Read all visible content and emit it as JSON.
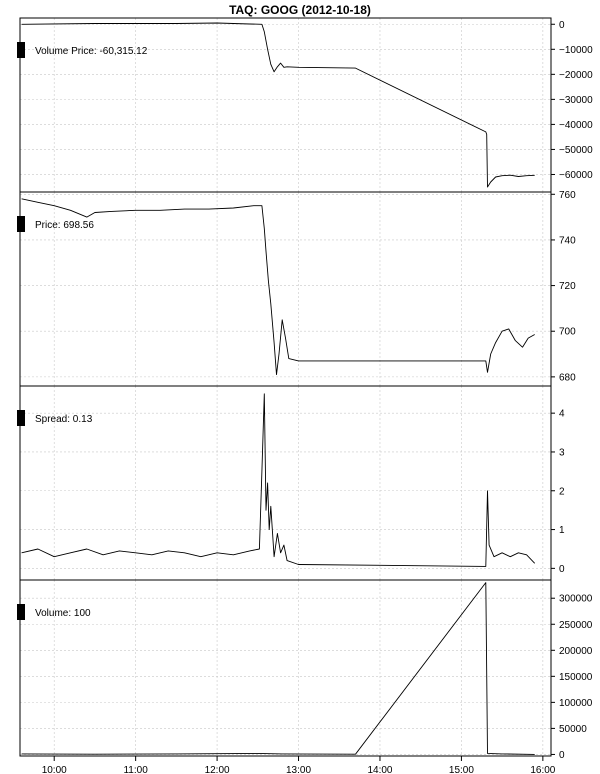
{
  "chart_data": {
    "type": "line",
    "title": "TAQ: GOOG (2012-10-18)",
    "x_axis": {
      "ticks": [
        "10:00",
        "11:00",
        "12:00",
        "13:00",
        "14:00",
        "15:00",
        "16:00"
      ],
      "range_hours": [
        9.58,
        16.1
      ]
    },
    "panels": [
      {
        "legend": "Volume Price: -60,315.12",
        "ylim": [
          -67000,
          2500
        ],
        "yticks": [
          0,
          -10000,
          -20000,
          -30000,
          -40000,
          -50000,
          -60000
        ],
        "ytick_labels": [
          "0",
          "−10000",
          "−20000",
          "−30000",
          "−40000",
          "−50000",
          "−60000"
        ],
        "points": [
          [
            9.6,
            0
          ],
          [
            10.5,
            300
          ],
          [
            11.5,
            300
          ],
          [
            12.0,
            500
          ],
          [
            12.4,
            100
          ],
          [
            12.55,
            0
          ],
          [
            12.58,
            -3000
          ],
          [
            12.62,
            -10000
          ],
          [
            12.66,
            -16000
          ],
          [
            12.7,
            -19000
          ],
          [
            12.74,
            -17000
          ],
          [
            12.78,
            -15500
          ],
          [
            12.82,
            -17200
          ],
          [
            12.86,
            -17000
          ],
          [
            13.0,
            -17200
          ],
          [
            13.7,
            -17500
          ],
          [
            15.3,
            -43000
          ],
          [
            15.31,
            -44000
          ],
          [
            15.32,
            -65000
          ],
          [
            15.36,
            -63000
          ],
          [
            15.42,
            -61000
          ],
          [
            15.5,
            -60500
          ],
          [
            15.6,
            -60300
          ],
          [
            15.7,
            -60800
          ],
          [
            15.8,
            -60500
          ],
          [
            15.9,
            -60315
          ]
        ]
      },
      {
        "legend": "Price: 698.56",
        "ylim": [
          676,
          761
        ],
        "yticks": [
          680,
          700,
          720,
          740,
          760
        ],
        "ytick_labels": [
          "680",
          "700",
          "720",
          "740",
          "760"
        ],
        "points": [
          [
            9.6,
            758
          ],
          [
            9.8,
            756.5
          ],
          [
            10.0,
            755
          ],
          [
            10.2,
            753
          ],
          [
            10.4,
            750
          ],
          [
            10.5,
            752
          ],
          [
            10.7,
            752.5
          ],
          [
            11.0,
            753
          ],
          [
            11.3,
            753
          ],
          [
            11.6,
            753.5
          ],
          [
            11.9,
            753.5
          ],
          [
            12.2,
            754
          ],
          [
            12.45,
            755
          ],
          [
            12.55,
            755
          ],
          [
            12.58,
            745
          ],
          [
            12.6,
            735
          ],
          [
            12.63,
            722
          ],
          [
            12.66,
            712
          ],
          [
            12.7,
            695
          ],
          [
            12.73,
            681
          ],
          [
            12.76,
            690
          ],
          [
            12.8,
            705
          ],
          [
            12.84,
            697
          ],
          [
            12.88,
            688
          ],
          [
            13.0,
            687
          ],
          [
            15.3,
            687
          ],
          [
            15.32,
            682
          ],
          [
            15.36,
            690
          ],
          [
            15.42,
            695
          ],
          [
            15.5,
            700
          ],
          [
            15.58,
            701
          ],
          [
            15.66,
            696
          ],
          [
            15.75,
            693
          ],
          [
            15.82,
            697
          ],
          [
            15.9,
            698.56
          ]
        ]
      },
      {
        "legend": "Spread: 0.13",
        "ylim": [
          -0.3,
          4.7
        ],
        "yticks": [
          0,
          1,
          2,
          3,
          4
        ],
        "ytick_labels": [
          "0",
          "1",
          "2",
          "3",
          "4"
        ],
        "points": [
          [
            9.6,
            0.4
          ],
          [
            9.8,
            0.5
          ],
          [
            10.0,
            0.3
          ],
          [
            10.2,
            0.4
          ],
          [
            10.4,
            0.5
          ],
          [
            10.6,
            0.35
          ],
          [
            10.8,
            0.45
          ],
          [
            11.0,
            0.4
          ],
          [
            11.2,
            0.35
          ],
          [
            11.4,
            0.45
          ],
          [
            11.6,
            0.4
          ],
          [
            11.8,
            0.3
          ],
          [
            12.0,
            0.4
          ],
          [
            12.2,
            0.35
          ],
          [
            12.4,
            0.45
          ],
          [
            12.52,
            0.5
          ],
          [
            12.55,
            2.5
          ],
          [
            12.58,
            4.5
          ],
          [
            12.6,
            1.5
          ],
          [
            12.62,
            2.2
          ],
          [
            12.64,
            1.0
          ],
          [
            12.66,
            1.6
          ],
          [
            12.7,
            0.3
          ],
          [
            12.74,
            0.9
          ],
          [
            12.78,
            0.4
          ],
          [
            12.82,
            0.6
          ],
          [
            12.86,
            0.2
          ],
          [
            13.0,
            0.1
          ],
          [
            15.3,
            0.05
          ],
          [
            15.32,
            2.0
          ],
          [
            15.34,
            0.6
          ],
          [
            15.4,
            0.3
          ],
          [
            15.5,
            0.4
          ],
          [
            15.6,
            0.3
          ],
          [
            15.7,
            0.4
          ],
          [
            15.8,
            0.35
          ],
          [
            15.9,
            0.13
          ]
        ]
      },
      {
        "legend": "Volume: 100",
        "ylim": [
          -3000,
          335000
        ],
        "yticks": [
          0,
          50000,
          100000,
          150000,
          200000,
          250000,
          300000
        ],
        "ytick_labels": [
          "0",
          "50000",
          "100000",
          "150000",
          "200000",
          "250000",
          "300000"
        ],
        "points": [
          [
            9.6,
            1000
          ],
          [
            10.5,
            500
          ],
          [
            11.5,
            1000
          ],
          [
            12.5,
            2000
          ],
          [
            12.8,
            1000
          ],
          [
            13.7,
            500
          ],
          [
            15.3,
            330000
          ],
          [
            15.32,
            2000
          ],
          [
            15.5,
            1000
          ],
          [
            15.9,
            100
          ]
        ]
      }
    ]
  }
}
